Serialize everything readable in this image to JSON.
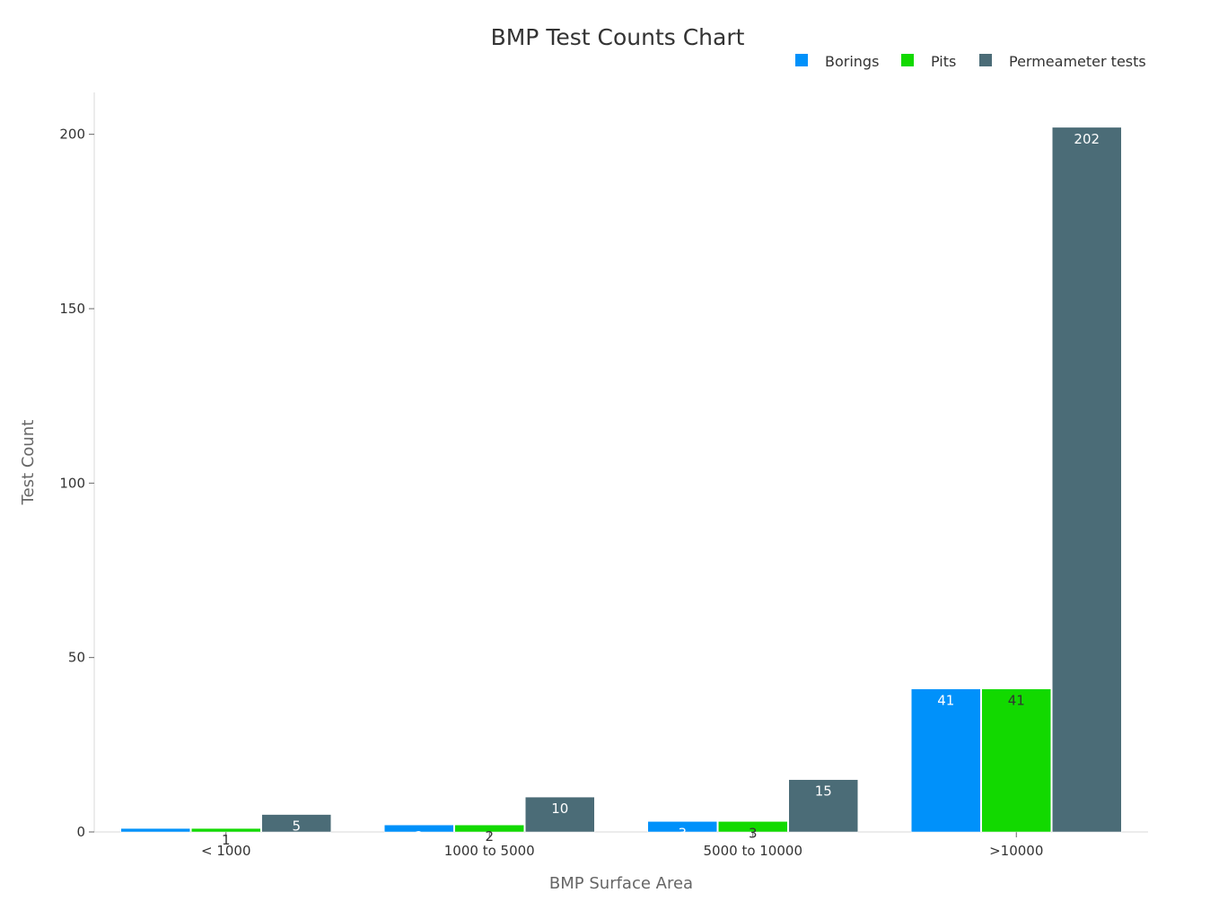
{
  "chart_data": {
    "type": "bar",
    "title": "BMP Test Counts Chart",
    "xlabel": "BMP Surface Area",
    "ylabel": "Test Count",
    "categories": [
      "< 1000",
      "1000 to 5000",
      "5000 to 10000",
      ">10000"
    ],
    "series": [
      {
        "name": "Borings",
        "color": "#0091fa",
        "values": [
          1,
          2,
          3,
          41
        ]
      },
      {
        "name": "Pits",
        "color": "#12d900",
        "values": [
          1,
          2,
          3,
          41
        ]
      },
      {
        "name": "Permeameter tests",
        "color": "#4b6c77",
        "values": [
          5,
          10,
          15,
          202
        ]
      }
    ],
    "ylim": [
      0,
      212
    ],
    "yticks": [
      0,
      50,
      100,
      150,
      200
    ],
    "grid": false,
    "legend": "top-right"
  }
}
